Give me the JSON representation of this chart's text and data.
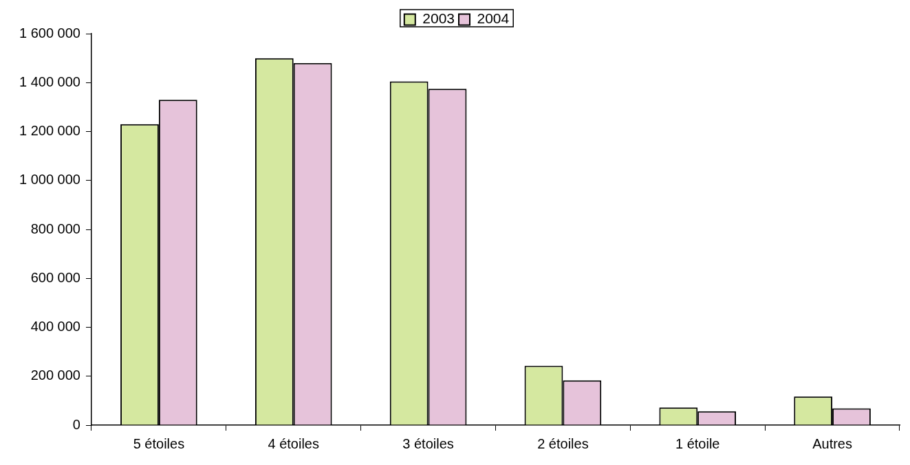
{
  "chart_data": {
    "type": "bar",
    "categories": [
      "5 étoiles",
      "4 étoiles",
      "3 étoiles",
      "2 étoiles",
      "1 étoile",
      "Autres"
    ],
    "series": [
      {
        "name": "2003",
        "color": "#d5e8a0",
        "values": [
          1230000,
          1500000,
          1405000,
          243000,
          72000,
          117000
        ]
      },
      {
        "name": "2004",
        "color": "#e6c3da",
        "values": [
          1330000,
          1480000,
          1375000,
          183000,
          57000,
          69000
        ]
      }
    ],
    "ylim": [
      0,
      1600000
    ],
    "yticks": [
      {
        "value": 0,
        "label": "0"
      },
      {
        "value": 200000,
        "label": "200 000"
      },
      {
        "value": 400000,
        "label": "400 000"
      },
      {
        "value": 600000,
        "label": "600 000"
      },
      {
        "value": 800000,
        "label": "800 000"
      },
      {
        "value": 1000000,
        "label": "1 000 000"
      },
      {
        "value": 1200000,
        "label": "1 200 000"
      },
      {
        "value": 1400000,
        "label": "1 400 000"
      },
      {
        "value": 1600000,
        "label": "1 600 000"
      }
    ],
    "grid": false,
    "legend": "top"
  }
}
